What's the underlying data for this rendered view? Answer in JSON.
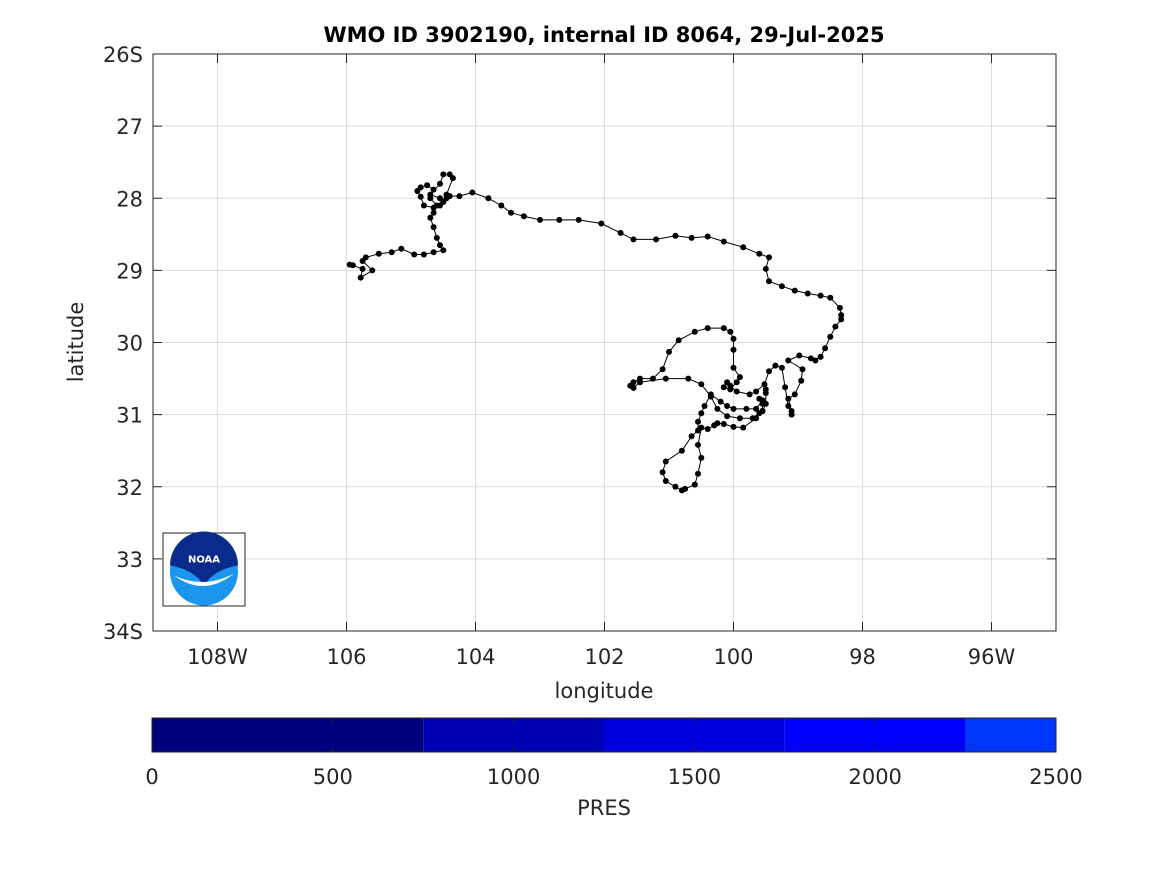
{
  "chart_data": {
    "type": "line",
    "title": "WMO ID 3902190, internal ID 8064, 29-Jul-2025",
    "xlabel": "longitude",
    "ylabel": "latitude",
    "x_axis": {
      "range": [
        -109,
        -95
      ],
      "ticks": [
        {
          "value": -108,
          "label": "108W"
        },
        {
          "value": -106,
          "label": "106"
        },
        {
          "value": -104,
          "label": "104"
        },
        {
          "value": -102,
          "label": "102"
        },
        {
          "value": -100,
          "label": "100"
        },
        {
          "value": -98,
          "label": "98"
        },
        {
          "value": -96,
          "label": "96W"
        }
      ]
    },
    "y_axis": {
      "range": [
        -34,
        -26
      ],
      "ticks": [
        {
          "value": -26,
          "label": "26S"
        },
        {
          "value": -27,
          "label": "27"
        },
        {
          "value": -28,
          "label": "28"
        },
        {
          "value": -29,
          "label": "29"
        },
        {
          "value": -30,
          "label": "30"
        },
        {
          "value": -31,
          "label": "31"
        },
        {
          "value": -32,
          "label": "32"
        },
        {
          "value": -33,
          "label": "33"
        },
        {
          "value": -34,
          "label": "34S"
        }
      ]
    },
    "grid": true,
    "series": [
      {
        "color": "#000000",
        "marker": "dot",
        "points": [
          [
            -105.95,
            -28.92
          ],
          [
            -105.9,
            -28.93
          ],
          [
            -105.75,
            -28.98
          ],
          [
            -105.78,
            -29.1
          ],
          [
            -105.6,
            -29.0
          ],
          [
            -105.75,
            -28.87
          ],
          [
            -105.7,
            -28.82
          ],
          [
            -105.5,
            -28.77
          ],
          [
            -105.3,
            -28.75
          ],
          [
            -105.15,
            -28.7
          ],
          [
            -104.95,
            -28.78
          ],
          [
            -104.8,
            -28.78
          ],
          [
            -104.65,
            -28.75
          ],
          [
            -104.5,
            -28.72
          ],
          [
            -104.55,
            -28.65
          ],
          [
            -104.6,
            -28.55
          ],
          [
            -104.65,
            -28.4
          ],
          [
            -104.7,
            -28.27
          ],
          [
            -104.65,
            -28.2
          ],
          [
            -104.6,
            -28.1
          ],
          [
            -104.7,
            -28.0
          ],
          [
            -104.65,
            -27.88
          ],
          [
            -104.75,
            -27.82
          ],
          [
            -104.85,
            -27.85
          ],
          [
            -104.9,
            -27.9
          ],
          [
            -104.85,
            -27.98
          ],
          [
            -104.8,
            -28.1
          ],
          [
            -104.65,
            -28.13
          ],
          [
            -104.55,
            -28.1
          ],
          [
            -104.5,
            -28.05
          ],
          [
            -104.45,
            -28.0
          ],
          [
            -104.45,
            -27.95
          ],
          [
            -104.35,
            -27.72
          ],
          [
            -104.4,
            -27.67
          ],
          [
            -104.5,
            -27.67
          ],
          [
            -104.55,
            -27.8
          ],
          [
            -104.7,
            -27.95
          ],
          [
            -104.55,
            -28.0
          ],
          [
            -104.5,
            -28.05
          ],
          [
            -104.4,
            -27.97
          ],
          [
            -104.25,
            -27.97
          ],
          [
            -104.05,
            -27.92
          ],
          [
            -103.8,
            -28.0
          ],
          [
            -103.6,
            -28.1
          ],
          [
            -103.45,
            -28.2
          ],
          [
            -103.25,
            -28.25
          ],
          [
            -103.0,
            -28.3
          ],
          [
            -102.7,
            -28.3
          ],
          [
            -102.4,
            -28.3
          ],
          [
            -102.05,
            -28.35
          ],
          [
            -101.75,
            -28.48
          ],
          [
            -101.55,
            -28.57
          ],
          [
            -101.2,
            -28.57
          ],
          [
            -100.9,
            -28.52
          ],
          [
            -100.65,
            -28.55
          ],
          [
            -100.4,
            -28.53
          ],
          [
            -100.15,
            -28.6
          ],
          [
            -99.85,
            -28.68
          ],
          [
            -99.6,
            -28.77
          ],
          [
            -99.45,
            -28.82
          ],
          [
            -99.5,
            -28.98
          ],
          [
            -99.45,
            -29.15
          ],
          [
            -99.25,
            -29.22
          ],
          [
            -99.05,
            -29.28
          ],
          [
            -98.85,
            -29.32
          ],
          [
            -98.65,
            -29.35
          ],
          [
            -98.5,
            -29.38
          ],
          [
            -98.35,
            -29.52
          ],
          [
            -98.33,
            -29.62
          ],
          [
            -98.33,
            -29.68
          ],
          [
            -98.42,
            -29.78
          ],
          [
            -98.5,
            -29.92
          ],
          [
            -98.58,
            -30.08
          ],
          [
            -98.65,
            -30.2
          ],
          [
            -98.73,
            -30.25
          ],
          [
            -98.8,
            -30.22
          ],
          [
            -98.98,
            -30.18
          ],
          [
            -99.15,
            -30.25
          ],
          [
            -98.93,
            -30.37
          ],
          [
            -98.95,
            -30.53
          ],
          [
            -99.05,
            -30.72
          ],
          [
            -99.15,
            -30.78
          ],
          [
            -99.1,
            -30.95
          ],
          [
            -99.1,
            -31.0
          ],
          [
            -99.15,
            -30.88
          ],
          [
            -99.2,
            -30.62
          ],
          [
            -99.25,
            -30.35
          ],
          [
            -99.35,
            -30.32
          ],
          [
            -99.45,
            -30.4
          ],
          [
            -99.52,
            -30.58
          ],
          [
            -99.65,
            -30.68
          ],
          [
            -99.75,
            -30.72
          ],
          [
            -99.95,
            -30.68
          ],
          [
            -100.05,
            -30.6
          ],
          [
            -100.1,
            -30.55
          ],
          [
            -100.15,
            -30.62
          ],
          [
            -100.05,
            -30.65
          ],
          [
            -99.95,
            -30.55
          ],
          [
            -99.9,
            -30.48
          ],
          [
            -100.0,
            -30.35
          ],
          [
            -100.0,
            -30.1
          ],
          [
            -100.0,
            -29.95
          ],
          [
            -100.05,
            -29.85
          ],
          [
            -100.15,
            -29.8
          ],
          [
            -100.4,
            -29.8
          ],
          [
            -100.6,
            -29.85
          ],
          [
            -100.85,
            -29.97
          ],
          [
            -101.0,
            -30.13
          ],
          [
            -101.1,
            -30.37
          ],
          [
            -101.25,
            -30.5
          ],
          [
            -101.45,
            -30.5
          ],
          [
            -101.55,
            -30.55
          ],
          [
            -101.6,
            -30.6
          ],
          [
            -101.55,
            -30.63
          ],
          [
            -101.45,
            -30.55
          ],
          [
            -101.05,
            -30.5
          ],
          [
            -100.7,
            -30.5
          ],
          [
            -100.5,
            -30.58
          ],
          [
            -100.35,
            -30.75
          ],
          [
            -100.25,
            -30.92
          ],
          [
            -100.1,
            -31.02
          ],
          [
            -99.9,
            -31.05
          ],
          [
            -99.7,
            -31.05
          ],
          [
            -99.6,
            -30.98
          ],
          [
            -99.55,
            -30.95
          ],
          [
            -99.55,
            -30.85
          ],
          [
            -99.6,
            -30.78
          ],
          [
            -99.55,
            -30.8
          ],
          [
            -99.65,
            -30.92
          ],
          [
            -99.8,
            -30.92
          ],
          [
            -100.0,
            -30.92
          ],
          [
            -100.1,
            -30.88
          ],
          [
            -100.2,
            -30.82
          ],
          [
            -100.35,
            -30.72
          ],
          [
            -100.45,
            -30.88
          ],
          [
            -100.5,
            -30.98
          ],
          [
            -100.55,
            -31.1
          ],
          [
            -100.55,
            -31.22
          ],
          [
            -100.65,
            -31.3
          ],
          [
            -100.8,
            -31.5
          ],
          [
            -101.05,
            -31.65
          ],
          [
            -101.1,
            -31.8
          ],
          [
            -101.05,
            -31.92
          ],
          [
            -100.9,
            -32.0
          ],
          [
            -100.8,
            -32.05
          ],
          [
            -100.75,
            -32.03
          ],
          [
            -100.6,
            -31.97
          ],
          [
            -100.55,
            -31.82
          ],
          [
            -100.5,
            -31.6
          ],
          [
            -100.55,
            -31.42
          ],
          [
            -100.5,
            -31.18
          ],
          [
            -100.4,
            -31.2
          ],
          [
            -100.3,
            -31.15
          ],
          [
            -100.25,
            -31.12
          ],
          [
            -100.15,
            -31.13
          ],
          [
            -100.0,
            -31.17
          ],
          [
            -99.85,
            -31.18
          ],
          [
            -99.65,
            -31.05
          ],
          [
            -99.55,
            -30.95
          ],
          [
            -99.5,
            -30.85
          ],
          [
            -99.5,
            -30.7
          ],
          [
            -99.5,
            -30.65
          ]
        ]
      }
    ],
    "colorbar": {
      "label": "PRES",
      "range": [
        0,
        2500
      ],
      "ticks": [
        "0",
        "500",
        "1000",
        "1500",
        "2000",
        "2500"
      ],
      "segments": [
        {
          "from": 0,
          "to": 750,
          "color": "#00007d"
        },
        {
          "from": 750,
          "to": 1250,
          "color": "#0000b4"
        },
        {
          "from": 1250,
          "to": 1750,
          "color": "#0000de"
        },
        {
          "from": 1750,
          "to": 2250,
          "color": "#0000ff"
        },
        {
          "from": 2250,
          "to": 2500,
          "color": "#0037ff"
        }
      ]
    },
    "logo": {
      "text": "NOAA",
      "colors": {
        "dark": "#0a2a8c",
        "light": "#1a96ee"
      }
    }
  }
}
